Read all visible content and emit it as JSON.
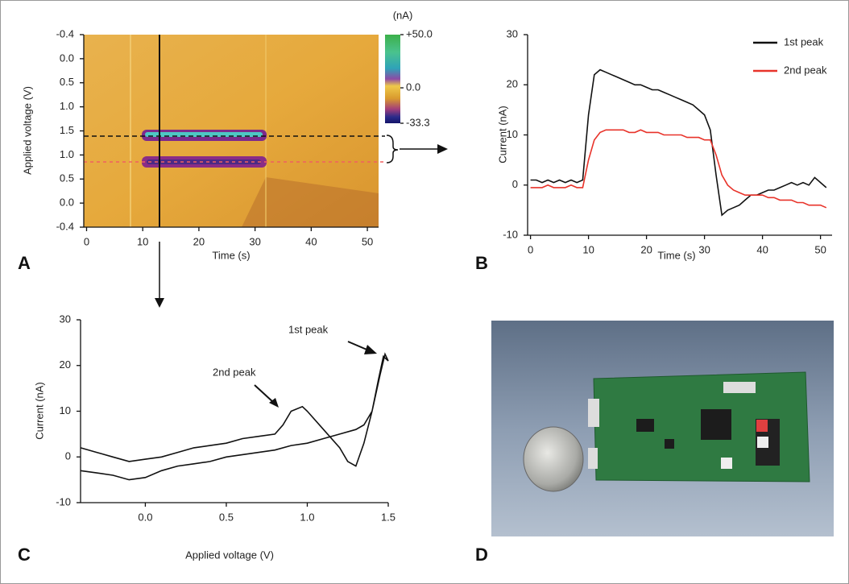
{
  "chart_data": [
    {
      "type": "heatmap",
      "panel": "A",
      "xlabel": "Time (s)",
      "ylabel": "Applied voltage (V)",
      "xlim": [
        -0.5,
        52
      ],
      "xticks": [
        0,
        10,
        20,
        30,
        40,
        50
      ],
      "ytick_labels": [
        "-0.4",
        "0.0",
        "0.5",
        "1.0",
        "1.5",
        "1.0",
        "0.5",
        "0.0",
        "-0.4"
      ],
      "colorbar": {
        "unit": "(nA)",
        "lim": [
          -33.3,
          50
        ],
        "ticks": [
          {
            "value": 50,
            "label": "+50.0"
          },
          {
            "value": 0,
            "label": "0.0"
          },
          {
            "value": -33.3,
            "label": "-33.3"
          }
        ]
      }
    },
    {
      "type": "line",
      "panel": "B",
      "xlabel": "Time (s)",
      "ylabel": "Current (nA)",
      "xlim": [
        -0.5,
        52
      ],
      "ylim": [
        -10,
        30
      ],
      "xticks": [
        0,
        10,
        20,
        30,
        40,
        50
      ],
      "yticks": [
        -10,
        0,
        10,
        20,
        30
      ],
      "legend": "upper right",
      "x": [
        0,
        1,
        2,
        3,
        4,
        5,
        6,
        7,
        8,
        9,
        10,
        11,
        12,
        13,
        14,
        15,
        16,
        17,
        18,
        19,
        20,
        21,
        22,
        23,
        24,
        25,
        26,
        27,
        28,
        29,
        30,
        31,
        32,
        33,
        34,
        35,
        36,
        37,
        38,
        39,
        40,
        41,
        42,
        43,
        44,
        45,
        46,
        47,
        48,
        49,
        50,
        51
      ],
      "series": [
        {
          "name": "1st peak",
          "color": "#111111",
          "values": [
            1,
            1,
            0.5,
            1,
            0.5,
            1,
            0.5,
            1,
            0.5,
            1,
            14,
            22,
            23,
            22.5,
            22,
            21.5,
            21,
            20.5,
            20,
            20,
            19.5,
            19,
            19,
            18.5,
            18,
            17.5,
            17,
            16.5,
            16,
            15,
            14,
            11,
            2,
            -6,
            -5,
            -4.5,
            -4,
            -3,
            -2,
            -2,
            -1.5,
            -1,
            -1,
            -0.5,
            0,
            0.5,
            0,
            0.5,
            0,
            1.5,
            0.5,
            -0.5
          ]
        },
        {
          "name": "2nd peak",
          "color": "#e8332a",
          "values": [
            -0.5,
            -0.5,
            -0.5,
            0,
            -0.5,
            -0.5,
            -0.5,
            0,
            -0.5,
            -0.5,
            5,
            9,
            10.5,
            11,
            11,
            11,
            11,
            10.5,
            10.5,
            11,
            10.5,
            10.5,
            10.5,
            10,
            10,
            10,
            10,
            9.5,
            9.5,
            9.5,
            9,
            9,
            6,
            2,
            0,
            -1,
            -1.5,
            -2,
            -2,
            -2,
            -2,
            -2.5,
            -2.5,
            -3,
            -3,
            -3,
            -3.5,
            -3.5,
            -4,
            -4,
            -4,
            -4.5
          ]
        }
      ]
    },
    {
      "type": "line",
      "panel": "C",
      "xlabel": "Applied voltage (V)",
      "ylabel": "Current (nA)",
      "xlim": [
        -0.4,
        1.5
      ],
      "ylim": [
        -10,
        30
      ],
      "xticks": [
        {
          "value": 0,
          "label": "0.0"
        },
        0.5,
        {
          "value": 1,
          "label": "1.0"
        },
        1.5
      ],
      "yticks": [
        -10,
        0,
        10,
        20,
        30
      ],
      "color": "#111111",
      "x": [
        -0.4,
        -0.3,
        -0.2,
        -0.1,
        0,
        0.1,
        0.2,
        0.3,
        0.4,
        0.5,
        0.6,
        0.7,
        0.8,
        0.9,
        1.0,
        1.1,
        1.2,
        1.3,
        1.35,
        1.4,
        1.45,
        1.48,
        1.5,
        1.47,
        1.44,
        1.4,
        1.35,
        1.3,
        1.25,
        1.2,
        1.1,
        1.0,
        0.97,
        0.9,
        0.85,
        0.8,
        0.7,
        0.6,
        0.5,
        0.4,
        0.3,
        0.2,
        0.1,
        0,
        -0.1,
        -0.2,
        -0.3,
        -0.4
      ],
      "values": [
        -3,
        -3.5,
        -4,
        -5,
        -4.5,
        -3,
        -2,
        -1.5,
        -1,
        0,
        0.5,
        1,
        1.5,
        2.5,
        3,
        4,
        5,
        6,
        7,
        10,
        18,
        22.5,
        21,
        22,
        17,
        10,
        3,
        -2,
        -1,
        2,
        6,
        10,
        11,
        10,
        7,
        5,
        4.5,
        4,
        3,
        2.5,
        2,
        1,
        0,
        -0.5,
        -1,
        0,
        1,
        2
      ],
      "annotations": [
        "1st peak",
        "2nd peak"
      ]
    }
  ],
  "photo": {
    "panel": "D"
  }
}
